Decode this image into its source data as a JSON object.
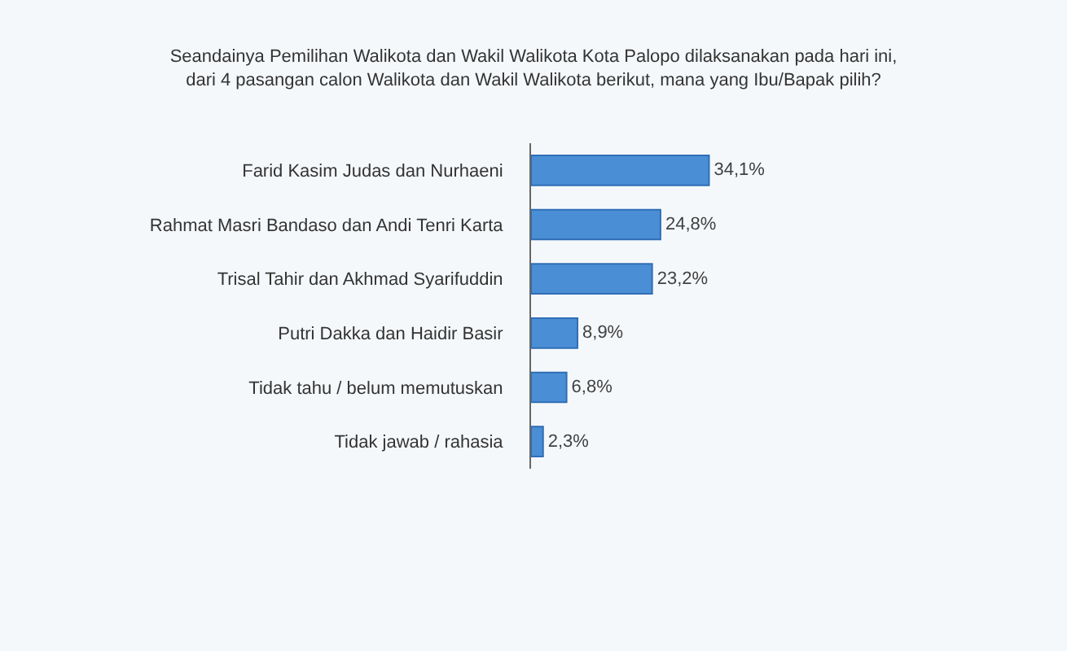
{
  "chart_data": {
    "type": "bar",
    "orientation": "horizontal",
    "tick_labels": "y",
    "title": "Seandainya Pemilihan Walikota dan Wakil Walikota Kota Palopo dilaksanakan pada hari ini,\ndari 4 pasangan calon Walikota dan Wakil Walikota berikut, mana yang Ibu/Bapak pilih?",
    "categories": [
      "Farid Kasim Judas dan Nurhaeni",
      "Rahmat Masri Bandaso dan Andi Tenri Karta",
      "Trisal Tahir dan Akhmad Syarifuddin",
      "Putri Dakka dan Haidir Basir",
      "Tidak tahu / belum memutuskan",
      "Tidak jawab / rahasia"
    ],
    "values": [
      34.1,
      24.8,
      23.2,
      8.9,
      6.8,
      2.3
    ],
    "value_labels": [
      "34,1%",
      "24,8%",
      "23,2%",
      "8,9%",
      "6,8%",
      "2,3%"
    ],
    "color": "#4a8fd6"
  }
}
